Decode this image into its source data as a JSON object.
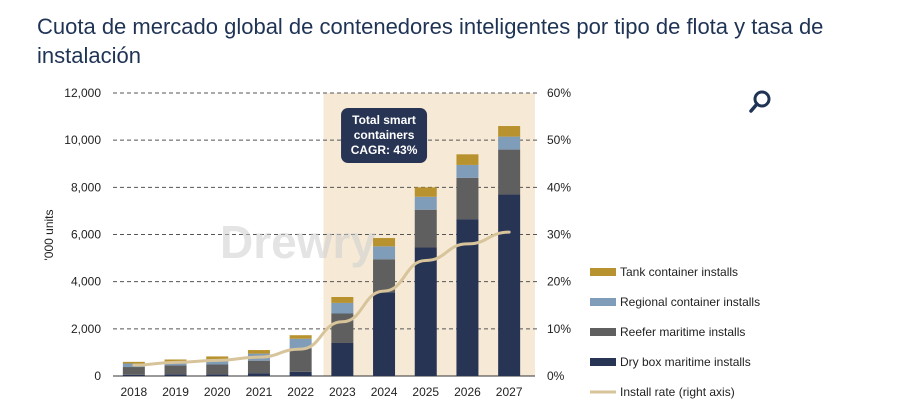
{
  "page": {
    "title": "Cuota de mercado global de contenedores inteligentes por tipo de flota y tasa de instalación"
  },
  "search_icon": "magnifier-icon",
  "colors": {
    "tank": "#b8922e",
    "regional": "#7f9cb8",
    "reefer": "#5f5f5f",
    "drybox": "#283454",
    "install_rate": "#d8c49a",
    "highlight": "#f6ead6",
    "annotation_bg": "#283454"
  },
  "chart_data": {
    "type": "bar",
    "stacked": true,
    "categories": [
      "2018",
      "2019",
      "2020",
      "2021",
      "2022",
      "2023",
      "2024",
      "2025",
      "2026",
      "2027"
    ],
    "series": [
      {
        "name": "Dry box maritime installs",
        "color": "#283454",
        "values": [
          50,
          70,
          70,
          120,
          180,
          1400,
          3550,
          5450,
          6650,
          7700
        ]
      },
      {
        "name": "Reefer maritime installs",
        "color": "#5f5f5f",
        "values": [
          330,
          380,
          420,
          530,
          1000,
          1250,
          1400,
          1600,
          1750,
          1900
        ]
      },
      {
        "name": "Regional container installs",
        "color": "#7f9cb8",
        "values": [
          150,
          150,
          230,
          300,
          400,
          450,
          550,
          550,
          550,
          550
        ]
      },
      {
        "name": "Tank container installs",
        "color": "#b8922e",
        "values": [
          70,
          100,
          110,
          150,
          150,
          250,
          350,
          400,
          450,
          450
        ]
      }
    ],
    "line_series": {
      "name": "Install rate (right axis)",
      "color": "#d8c49a",
      "axis": "right",
      "values": [
        2.3,
        2.9,
        3.3,
        4.0,
        5.7,
        11.5,
        18.0,
        24.5,
        28.0,
        30.5
      ]
    },
    "y_left": {
      "label": "'000 units",
      "ticks": [
        "0",
        "2,000",
        "4,000",
        "6,000",
        "8,000",
        "10,000",
        "12,000"
      ],
      "range": [
        0,
        12000
      ]
    },
    "y_right": {
      "ticks": [
        "0%",
        "10%",
        "20%",
        "30%",
        "40%",
        "50%",
        "60%"
      ],
      "range": [
        0,
        60
      ]
    },
    "highlight_from_category": "2023",
    "annotation": {
      "lines": [
        "Total smart",
        "containers",
        "CAGR: 43%"
      ]
    },
    "watermark": "Drewry",
    "legend_order": [
      "Tank container installs",
      "Regional container installs",
      "Reefer maritime installs",
      "Dry box maritime installs",
      "Install rate (right axis)"
    ],
    "legend_position": "right",
    "grid": "dashed horizontal"
  }
}
